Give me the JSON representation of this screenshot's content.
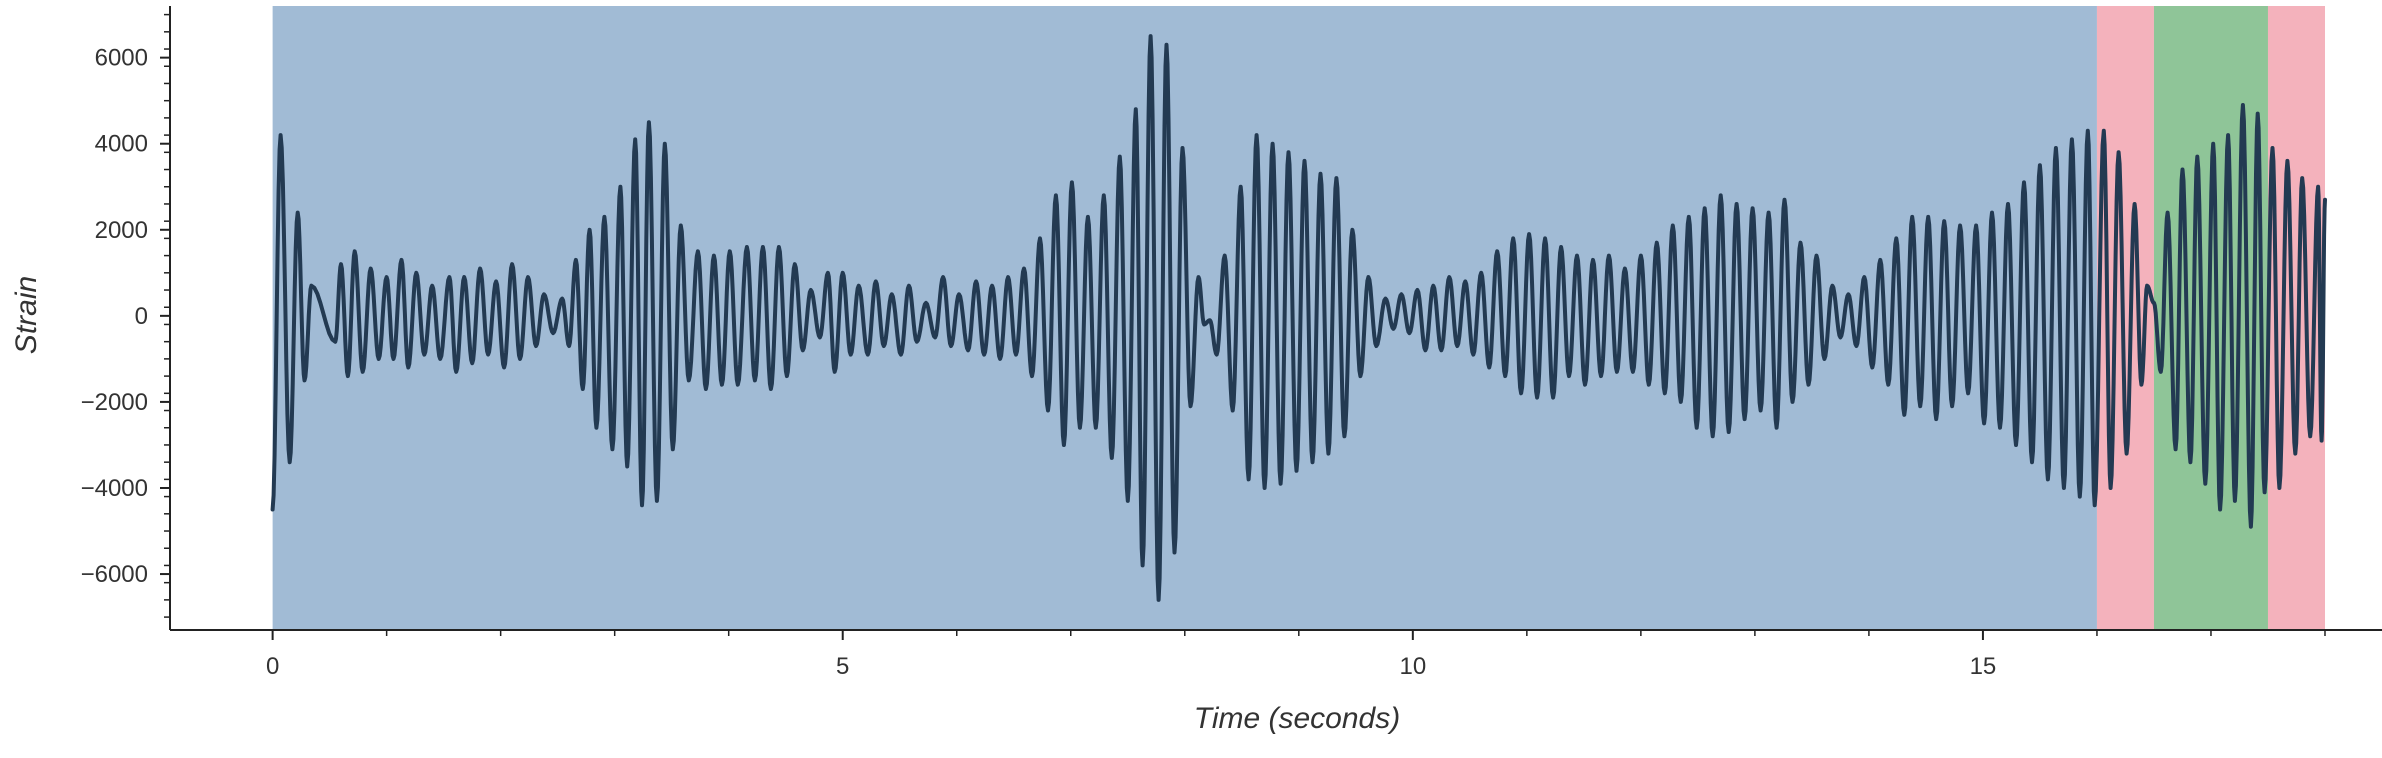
{
  "chart_data": {
    "type": "line",
    "title": "",
    "xlabel": "Time (seconds)",
    "ylabel": "Strain",
    "xlim": [
      -0.9,
      18.5
    ],
    "ylim": [
      -7300,
      7200
    ],
    "x_ticks": [
      0,
      5,
      10,
      15
    ],
    "x_tick_labels": [
      "0",
      "5",
      "10",
      "15"
    ],
    "y_ticks": [
      6000,
      4000,
      2000,
      0,
      -2000,
      -4000,
      -6000
    ],
    "y_tick_labels": [
      "6000",
      "4000",
      "2000",
      "0",
      "−2000",
      "−4000",
      "−6000"
    ],
    "grid": false,
    "legend": "none",
    "regions": [
      {
        "x0": 0.0,
        "x1": 16.0,
        "color": "#a1bbd5"
      },
      {
        "x0": 16.0,
        "x1": 16.5,
        "color": "#f4b2bc"
      },
      {
        "x0": 16.5,
        "x1": 17.5,
        "color": "#8fc598"
      },
      {
        "x0": 17.5,
        "x1": 18.0,
        "color": "#f4b2bc"
      }
    ],
    "series": [
      {
        "color": "#233a52",
        "start_x": 0.0,
        "start_y": -4500,
        "end_x": 18.0,
        "end_y": 2700,
        "peaks": [
          {
            "x": 0.07,
            "y": 4200
          },
          {
            "x": 0.15,
            "y": -3400
          },
          {
            "x": 0.22,
            "y": 2400
          },
          {
            "x": 0.28,
            "y": -1500
          },
          {
            "x": 0.34,
            "y": 700
          },
          {
            "x": 0.55,
            "y": -600
          },
          {
            "x": 0.6,
            "y": 1200
          },
          {
            "x": 0.66,
            "y": -1400
          },
          {
            "x": 0.72,
            "y": 1500
          },
          {
            "x": 0.79,
            "y": -1300
          },
          {
            "x": 0.86,
            "y": 1100
          },
          {
            "x": 0.93,
            "y": -1000
          },
          {
            "x": 1.0,
            "y": 900
          },
          {
            "x": 1.06,
            "y": -1000
          },
          {
            "x": 1.13,
            "y": 1300
          },
          {
            "x": 1.19,
            "y": -1200
          },
          {
            "x": 1.26,
            "y": 1000
          },
          {
            "x": 1.33,
            "y": -900
          },
          {
            "x": 1.4,
            "y": 700
          },
          {
            "x": 1.47,
            "y": -1000
          },
          {
            "x": 1.55,
            "y": 900
          },
          {
            "x": 1.61,
            "y": -1300
          },
          {
            "x": 1.68,
            "y": 900
          },
          {
            "x": 1.75,
            "y": -1100
          },
          {
            "x": 1.82,
            "y": 1100
          },
          {
            "x": 1.89,
            "y": -900
          },
          {
            "x": 1.96,
            "y": 800
          },
          {
            "x": 2.03,
            "y": -1200
          },
          {
            "x": 2.1,
            "y": 1200
          },
          {
            "x": 2.17,
            "y": -1000
          },
          {
            "x": 2.24,
            "y": 900
          },
          {
            "x": 2.31,
            "y": -700
          },
          {
            "x": 2.38,
            "y": 500
          },
          {
            "x": 2.46,
            "y": -400
          },
          {
            "x": 2.54,
            "y": 400
          },
          {
            "x": 2.6,
            "y": -700
          },
          {
            "x": 2.66,
            "y": 1300
          },
          {
            "x": 2.72,
            "y": -1700
          },
          {
            "x": 2.78,
            "y": 2000
          },
          {
            "x": 2.84,
            "y": -2600
          },
          {
            "x": 2.91,
            "y": 2300
          },
          {
            "x": 2.98,
            "y": -3100
          },
          {
            "x": 3.05,
            "y": 3000
          },
          {
            "x": 3.11,
            "y": -3500
          },
          {
            "x": 3.18,
            "y": 4100
          },
          {
            "x": 3.24,
            "y": -4400
          },
          {
            "x": 3.3,
            "y": 4500
          },
          {
            "x": 3.37,
            "y": -4300
          },
          {
            "x": 3.44,
            "y": 4000
          },
          {
            "x": 3.51,
            "y": -3100
          },
          {
            "x": 3.58,
            "y": 2100
          },
          {
            "x": 3.65,
            "y": -1500
          },
          {
            "x": 3.73,
            "y": 1500
          },
          {
            "x": 3.8,
            "y": -1700
          },
          {
            "x": 3.87,
            "y": 1400
          },
          {
            "x": 3.94,
            "y": -1600
          },
          {
            "x": 4.01,
            "y": 1500
          },
          {
            "x": 4.08,
            "y": -1600
          },
          {
            "x": 4.16,
            "y": 1600
          },
          {
            "x": 4.23,
            "y": -1500
          },
          {
            "x": 4.3,
            "y": 1600
          },
          {
            "x": 4.37,
            "y": -1700
          },
          {
            "x": 4.44,
            "y": 1600
          },
          {
            "x": 4.51,
            "y": -1400
          },
          {
            "x": 4.58,
            "y": 1200
          },
          {
            "x": 4.65,
            "y": -800
          },
          {
            "x": 4.72,
            "y": 600
          },
          {
            "x": 4.8,
            "y": -500
          },
          {
            "x": 4.87,
            "y": 1000
          },
          {
            "x": 4.93,
            "y": -1300
          },
          {
            "x": 5.0,
            "y": 1000
          },
          {
            "x": 5.07,
            "y": -900
          },
          {
            "x": 5.14,
            "y": 700
          },
          {
            "x": 5.22,
            "y": -900
          },
          {
            "x": 5.29,
            "y": 800
          },
          {
            "x": 5.36,
            "y": -700
          },
          {
            "x": 5.43,
            "y": 500
          },
          {
            "x": 5.51,
            "y": -900
          },
          {
            "x": 5.58,
            "y": 700
          },
          {
            "x": 5.65,
            "y": -600
          },
          {
            "x": 5.73,
            "y": 300
          },
          {
            "x": 5.81,
            "y": -500
          },
          {
            "x": 5.88,
            "y": 900
          },
          {
            "x": 5.95,
            "y": -700
          },
          {
            "x": 6.02,
            "y": 500
          },
          {
            "x": 6.1,
            "y": -800
          },
          {
            "x": 6.17,
            "y": 800
          },
          {
            "x": 6.24,
            "y": -900
          },
          {
            "x": 6.31,
            "y": 700
          },
          {
            "x": 6.38,
            "y": -1000
          },
          {
            "x": 6.45,
            "y": 900
          },
          {
            "x": 6.52,
            "y": -900
          },
          {
            "x": 6.59,
            "y": 1100
          },
          {
            "x": 6.66,
            "y": -1400
          },
          {
            "x": 6.73,
            "y": 1800
          },
          {
            "x": 6.8,
            "y": -2200
          },
          {
            "x": 6.87,
            "y": 2800
          },
          {
            "x": 6.94,
            "y": -3000
          },
          {
            "x": 7.01,
            "y": 3100
          },
          {
            "x": 7.08,
            "y": -2600
          },
          {
            "x": 7.15,
            "y": 2300
          },
          {
            "x": 7.22,
            "y": -2600
          },
          {
            "x": 7.29,
            "y": 2800
          },
          {
            "x": 7.36,
            "y": -3300
          },
          {
            "x": 7.43,
            "y": 3700
          },
          {
            "x": 7.5,
            "y": -4300
          },
          {
            "x": 7.57,
            "y": 4800
          },
          {
            "x": 7.63,
            "y": -5800
          },
          {
            "x": 7.7,
            "y": 6500
          },
          {
            "x": 7.77,
            "y": -6600
          },
          {
            "x": 7.84,
            "y": 6300
          },
          {
            "x": 7.91,
            "y": -5500
          },
          {
            "x": 7.98,
            "y": 3900
          },
          {
            "x": 8.05,
            "y": -2100
          },
          {
            "x": 8.12,
            "y": 900
          },
          {
            "x": 8.17,
            "y": -200
          },
          {
            "x": 8.22,
            "y": -100
          },
          {
            "x": 8.28,
            "y": -900
          },
          {
            "x": 8.35,
            "y": 1400
          },
          {
            "x": 8.42,
            "y": -2200
          },
          {
            "x": 8.49,
            "y": 3000
          },
          {
            "x": 8.56,
            "y": -3800
          },
          {
            "x": 8.63,
            "y": 4200
          },
          {
            "x": 8.7,
            "y": -4000
          },
          {
            "x": 8.77,
            "y": 4000
          },
          {
            "x": 8.84,
            "y": -3900
          },
          {
            "x": 8.91,
            "y": 3800
          },
          {
            "x": 8.98,
            "y": -3600
          },
          {
            "x": 9.05,
            "y": 3600
          },
          {
            "x": 9.12,
            "y": -3400
          },
          {
            "x": 9.19,
            "y": 3300
          },
          {
            "x": 9.26,
            "y": -3200
          },
          {
            "x": 9.33,
            "y": 3200
          },
          {
            "x": 9.4,
            "y": -2800
          },
          {
            "x": 9.47,
            "y": 2000
          },
          {
            "x": 9.54,
            "y": -1400
          },
          {
            "x": 9.61,
            "y": 900
          },
          {
            "x": 9.68,
            "y": -700
          },
          {
            "x": 9.76,
            "y": 400
          },
          {
            "x": 9.83,
            "y": -300
          },
          {
            "x": 9.9,
            "y": 500
          },
          {
            "x": 9.97,
            "y": -400
          },
          {
            "x": 10.04,
            "y": 600
          },
          {
            "x": 10.11,
            "y": -800
          },
          {
            "x": 10.18,
            "y": 700
          },
          {
            "x": 10.25,
            "y": -800
          },
          {
            "x": 10.32,
            "y": 900
          },
          {
            "x": 10.39,
            "y": -700
          },
          {
            "x": 10.46,
            "y": 800
          },
          {
            "x": 10.53,
            "y": -900
          },
          {
            "x": 10.6,
            "y": 1000
          },
          {
            "x": 10.67,
            "y": -1200
          },
          {
            "x": 10.74,
            "y": 1500
          },
          {
            "x": 10.81,
            "y": -1400
          },
          {
            "x": 10.88,
            "y": 1800
          },
          {
            "x": 10.95,
            "y": -1800
          },
          {
            "x": 11.02,
            "y": 1900
          },
          {
            "x": 11.09,
            "y": -1900
          },
          {
            "x": 11.16,
            "y": 1800
          },
          {
            "x": 11.23,
            "y": -1900
          },
          {
            "x": 11.3,
            "y": 1600
          },
          {
            "x": 11.37,
            "y": -1400
          },
          {
            "x": 11.44,
            "y": 1400
          },
          {
            "x": 11.51,
            "y": -1600
          },
          {
            "x": 11.58,
            "y": 1300
          },
          {
            "x": 11.65,
            "y": -1400
          },
          {
            "x": 11.72,
            "y": 1400
          },
          {
            "x": 11.79,
            "y": -1300
          },
          {
            "x": 11.86,
            "y": 1100
          },
          {
            "x": 11.93,
            "y": -1300
          },
          {
            "x": 12.0,
            "y": 1400
          },
          {
            "x": 12.07,
            "y": -1600
          },
          {
            "x": 12.14,
            "y": 1700
          },
          {
            "x": 12.21,
            "y": -1800
          },
          {
            "x": 12.28,
            "y": 2100
          },
          {
            "x": 12.35,
            "y": -2000
          },
          {
            "x": 12.42,
            "y": 2300
          },
          {
            "x": 12.49,
            "y": -2600
          },
          {
            "x": 12.56,
            "y": 2500
          },
          {
            "x": 12.63,
            "y": -2800
          },
          {
            "x": 12.7,
            "y": 2800
          },
          {
            "x": 12.77,
            "y": -2700
          },
          {
            "x": 12.84,
            "y": 2600
          },
          {
            "x": 12.91,
            "y": -2400
          },
          {
            "x": 12.98,
            "y": 2500
          },
          {
            "x": 13.05,
            "y": -2200
          },
          {
            "x": 13.12,
            "y": 2400
          },
          {
            "x": 13.19,
            "y": -2600
          },
          {
            "x": 13.26,
            "y": 2700
          },
          {
            "x": 13.33,
            "y": -2000
          },
          {
            "x": 13.4,
            "y": 1700
          },
          {
            "x": 13.47,
            "y": -1600
          },
          {
            "x": 13.54,
            "y": 1400
          },
          {
            "x": 13.61,
            "y": -1000
          },
          {
            "x": 13.68,
            "y": 700
          },
          {
            "x": 13.75,
            "y": -500
          },
          {
            "x": 13.82,
            "y": 500
          },
          {
            "x": 13.89,
            "y": -700
          },
          {
            "x": 13.96,
            "y": 900
          },
          {
            "x": 14.03,
            "y": -1200
          },
          {
            "x": 14.1,
            "y": 1300
          },
          {
            "x": 14.17,
            "y": -1600
          },
          {
            "x": 14.24,
            "y": 1800
          },
          {
            "x": 14.31,
            "y": -2300
          },
          {
            "x": 14.38,
            "y": 2300
          },
          {
            "x": 14.45,
            "y": -2100
          },
          {
            "x": 14.52,
            "y": 2300
          },
          {
            "x": 14.59,
            "y": -2400
          },
          {
            "x": 14.66,
            "y": 2200
          },
          {
            "x": 14.73,
            "y": -2100
          },
          {
            "x": 14.8,
            "y": 2100
          },
          {
            "x": 14.87,
            "y": -1800
          },
          {
            "x": 14.94,
            "y": 2100
          },
          {
            "x": 15.01,
            "y": -2500
          },
          {
            "x": 15.08,
            "y": 2400
          },
          {
            "x": 15.15,
            "y": -2600
          },
          {
            "x": 15.22,
            "y": 2600
          },
          {
            "x": 15.29,
            "y": -3000
          },
          {
            "x": 15.36,
            "y": 3100
          },
          {
            "x": 15.43,
            "y": -3400
          },
          {
            "x": 15.5,
            "y": 3500
          },
          {
            "x": 15.57,
            "y": -3800
          },
          {
            "x": 15.64,
            "y": 3900
          },
          {
            "x": 15.71,
            "y": -4000
          },
          {
            "x": 15.78,
            "y": 4100
          },
          {
            "x": 15.85,
            "y": -4200
          },
          {
            "x": 15.92,
            "y": 4300
          },
          {
            "x": 15.98,
            "y": -4400
          },
          {
            "x": 16.06,
            "y": 4300
          },
          {
            "x": 16.12,
            "y": -4000
          },
          {
            "x": 16.19,
            "y": 3800
          },
          {
            "x": 16.26,
            "y": -3200
          },
          {
            "x": 16.33,
            "y": 2600
          },
          {
            "x": 16.39,
            "y": -1600
          },
          {
            "x": 16.44,
            "y": 700
          },
          {
            "x": 16.5,
            "y": 300
          },
          {
            "x": 16.56,
            "y": -1300
          },
          {
            "x": 16.62,
            "y": 2400
          },
          {
            "x": 16.69,
            "y": -3100
          },
          {
            "x": 16.75,
            "y": 3400
          },
          {
            "x": 16.82,
            "y": -3400
          },
          {
            "x": 16.88,
            "y": 3700
          },
          {
            "x": 16.95,
            "y": -3900
          },
          {
            "x": 17.02,
            "y": 4000
          },
          {
            "x": 17.08,
            "y": -4500
          },
          {
            "x": 17.15,
            "y": 4200
          },
          {
            "x": 17.21,
            "y": -4300
          },
          {
            "x": 17.28,
            "y": 4900
          },
          {
            "x": 17.35,
            "y": -4900
          },
          {
            "x": 17.41,
            "y": 4700
          },
          {
            "x": 17.47,
            "y": -4100
          },
          {
            "x": 17.54,
            "y": 3900
          },
          {
            "x": 17.6,
            "y": -4000
          },
          {
            "x": 17.67,
            "y": 3600
          },
          {
            "x": 17.74,
            "y": -3200
          },
          {
            "x": 17.8,
            "y": 3200
          },
          {
            "x": 17.87,
            "y": -2800
          },
          {
            "x": 17.94,
            "y": 3000
          },
          {
            "x": 17.97,
            "y": -2900
          }
        ]
      }
    ]
  }
}
